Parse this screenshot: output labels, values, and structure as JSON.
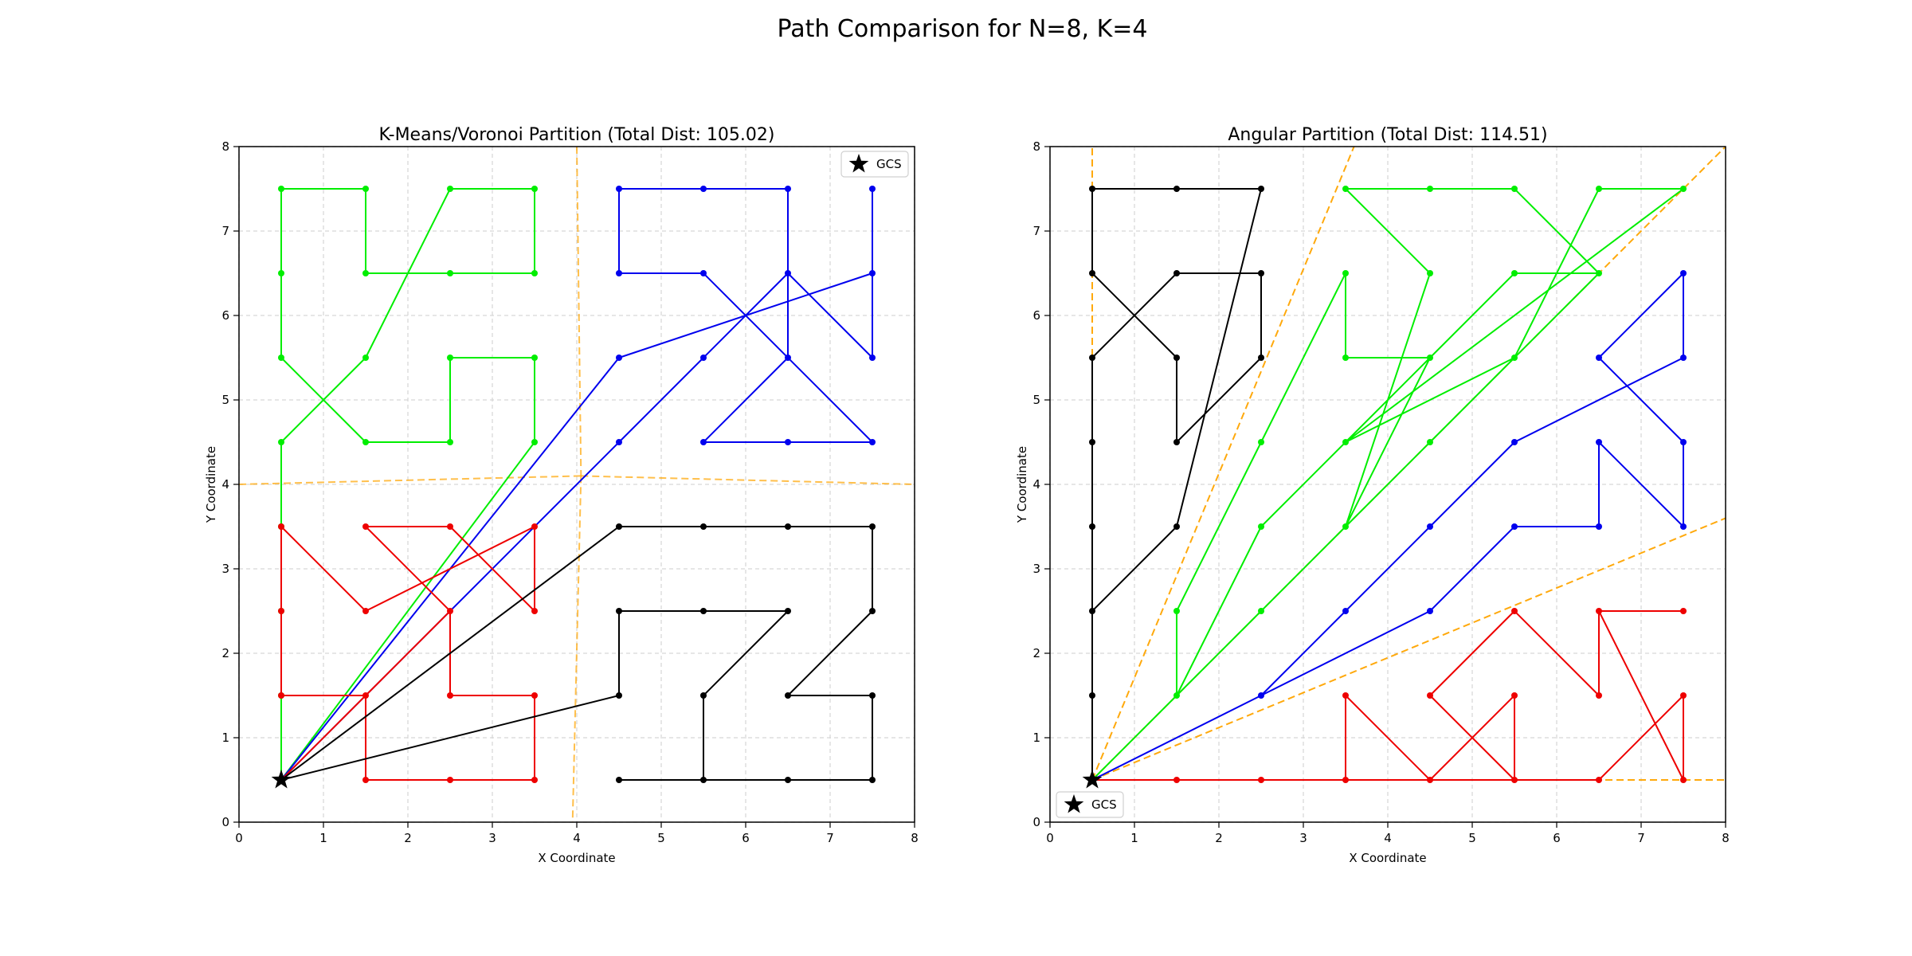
{
  "figure_title": "Path Comparison for N=8, K=4",
  "colors": {
    "green": "#00ee00",
    "blue": "#0000ee",
    "red": "#ee0000",
    "black": "#000000",
    "boundary": "#ffa500",
    "grid": "#d6d6d6"
  },
  "chart_data": [
    {
      "type": "line",
      "title": "K-Means/Voronoi Partition (Total Dist: 105.02)",
      "xlabel": "X Coordinate",
      "ylabel": "Y Coordinate",
      "xlim": [
        0,
        8
      ],
      "ylim": [
        0,
        8
      ],
      "xticks": [
        "0",
        "1",
        "2",
        "3",
        "4",
        "5",
        "6",
        "7",
        "8"
      ],
      "yticks": [
        "0",
        "1",
        "2",
        "3",
        "4",
        "5",
        "6",
        "7",
        "8"
      ],
      "grid": true,
      "legend": {
        "placement": "top-right",
        "entries": [
          {
            "label": "GCS",
            "marker": "star"
          }
        ]
      },
      "gcs": [
        0.5,
        0.5
      ],
      "boundaries": [
        [
          [
            0,
            4.0
          ],
          [
            4.05,
            4.1
          ]
        ],
        [
          [
            4.05,
            4.1
          ],
          [
            8,
            4.0
          ]
        ],
        [
          [
            4.0,
            8.0
          ],
          [
            4.05,
            4.1
          ]
        ],
        [
          [
            4.05,
            4.1
          ],
          [
            3.95,
            0
          ]
        ]
      ],
      "series": [
        {
          "color": "green",
          "points": [
            [
              0.5,
              0.5
            ],
            [
              0.5,
              1.5
            ],
            [
              0.5,
              2.5
            ],
            [
              0.5,
              3.5
            ],
            [
              0.5,
              4.5
            ],
            [
              1.5,
              5.5
            ],
            [
              2.5,
              7.5
            ],
            [
              3.5,
              7.5
            ],
            [
              3.5,
              6.5
            ],
            [
              2.5,
              6.5
            ],
            [
              1.5,
              6.5
            ],
            [
              1.5,
              7.5
            ],
            [
              0.5,
              7.5
            ],
            [
              0.5,
              6.5
            ],
            [
              0.5,
              5.5
            ],
            [
              1.5,
              4.5
            ],
            [
              2.5,
              4.5
            ],
            [
              2.5,
              5.5
            ],
            [
              3.5,
              5.5
            ],
            [
              3.5,
              4.5
            ],
            [
              0.5,
              0.5
            ]
          ]
        },
        {
          "color": "blue",
          "points": [
            [
              0.5,
              0.5
            ],
            [
              4.5,
              5.5
            ],
            [
              7.5,
              6.5
            ],
            [
              7.5,
              7.5
            ],
            [
              7.5,
              5.5
            ],
            [
              6.5,
              6.5
            ],
            [
              6.5,
              7.5
            ],
            [
              5.5,
              7.5
            ],
            [
              4.5,
              7.5
            ],
            [
              4.5,
              6.5
            ],
            [
              5.5,
              6.5
            ],
            [
              7.5,
              4.5
            ],
            [
              6.5,
              4.5
            ],
            [
              5.5,
              4.5
            ],
            [
              6.5,
              5.5
            ],
            [
              6.5,
              6.5
            ],
            [
              5.5,
              5.5
            ],
            [
              4.5,
              4.5
            ],
            [
              0.5,
              0.5
            ]
          ]
        },
        {
          "color": "red",
          "points": [
            [
              0.5,
              0.5
            ],
            [
              1.5,
              1.5
            ],
            [
              2.5,
              2.5
            ],
            [
              2.5,
              1.5
            ],
            [
              3.5,
              1.5
            ],
            [
              3.5,
              0.5
            ],
            [
              2.5,
              0.5
            ],
            [
              1.5,
              0.5
            ],
            [
              1.5,
              1.5
            ],
            [
              0.5,
              1.5
            ],
            [
              0.5,
              2.5
            ],
            [
              0.5,
              3.5
            ],
            [
              1.5,
              2.5
            ],
            [
              3.5,
              3.5
            ],
            [
              3.5,
              2.5
            ],
            [
              2.5,
              3.5
            ],
            [
              1.5,
              3.5
            ],
            [
              2.5,
              2.5
            ],
            [
              0.5,
              0.5
            ]
          ]
        },
        {
          "color": "black",
          "points": [
            [
              0.5,
              0.5
            ],
            [
              4.5,
              3.5
            ],
            [
              5.5,
              3.5
            ],
            [
              6.5,
              3.5
            ],
            [
              7.5,
              3.5
            ],
            [
              7.5,
              2.5
            ],
            [
              6.5,
              1.5
            ],
            [
              7.5,
              1.5
            ],
            [
              7.5,
              0.5
            ],
            [
              6.5,
              0.5
            ],
            [
              5.5,
              0.5
            ],
            [
              4.5,
              0.5
            ],
            [
              5.5,
              0.5
            ],
            [
              5.5,
              1.5
            ],
            [
              6.5,
              2.5
            ],
            [
              5.5,
              2.5
            ],
            [
              4.5,
              2.5
            ],
            [
              4.5,
              1.5
            ],
            [
              0.5,
              0.5
            ]
          ]
        }
      ]
    },
    {
      "type": "line",
      "title": "Angular Partition (Total Dist: 114.51)",
      "xlabel": "X Coordinate",
      "ylabel": "Y Coordinate",
      "xlim": [
        0,
        8
      ],
      "ylim": [
        0,
        8
      ],
      "xticks": [
        "0",
        "1",
        "2",
        "3",
        "4",
        "5",
        "6",
        "7",
        "8"
      ],
      "yticks": [
        "0",
        "1",
        "2",
        "3",
        "4",
        "5",
        "6",
        "7",
        "8"
      ],
      "grid": true,
      "legend": {
        "placement": "bottom-left",
        "entries": [
          {
            "label": "GCS",
            "marker": "star"
          }
        ]
      },
      "gcs": [
        0.5,
        0.5
      ],
      "boundaries": [
        [
          [
            0.5,
            0.5
          ],
          [
            0.5,
            8.0
          ]
        ],
        [
          [
            0.5,
            0.5
          ],
          [
            3.6,
            8.0
          ]
        ],
        [
          [
            0.5,
            0.5
          ],
          [
            8.0,
            8.0
          ]
        ],
        [
          [
            0.5,
            0.5
          ],
          [
            8.0,
            3.6
          ]
        ],
        [
          [
            0.5,
            0.5
          ],
          [
            8.0,
            0.5
          ]
        ]
      ],
      "series": [
        {
          "color": "black",
          "points": [
            [
              0.5,
              0.5
            ],
            [
              0.5,
              1.5
            ],
            [
              0.5,
              2.5
            ],
            [
              1.5,
              3.5
            ],
            [
              2.5,
              7.5
            ],
            [
              1.5,
              7.5
            ],
            [
              0.5,
              7.5
            ],
            [
              0.5,
              6.5
            ],
            [
              1.5,
              5.5
            ],
            [
              1.5,
              4.5
            ],
            [
              2.5,
              5.5
            ],
            [
              2.5,
              6.5
            ],
            [
              1.5,
              6.5
            ],
            [
              0.5,
              5.5
            ],
            [
              0.5,
              4.5
            ],
            [
              0.5,
              3.5
            ],
            [
              0.5,
              2.5
            ],
            [
              0.5,
              0.5
            ]
          ]
        },
        {
          "color": "green",
          "points": [
            [
              0.5,
              0.5
            ],
            [
              1.5,
              1.5
            ],
            [
              1.5,
              2.5
            ],
            [
              2.5,
              4.5
            ],
            [
              3.5,
              6.5
            ],
            [
              3.5,
              5.5
            ],
            [
              4.5,
              5.5
            ],
            [
              3.5,
              4.5
            ],
            [
              5.5,
              5.5
            ],
            [
              6.5,
              7.5
            ],
            [
              7.5,
              7.5
            ],
            [
              3.5,
              4.5
            ],
            [
              2.5,
              3.5
            ],
            [
              1.5,
              1.5
            ],
            [
              2.5,
              2.5
            ],
            [
              3.5,
              3.5
            ],
            [
              4.5,
              6.5
            ],
            [
              3.5,
              7.5
            ],
            [
              4.5,
              7.5
            ],
            [
              5.5,
              7.5
            ],
            [
              6.5,
              6.5
            ],
            [
              5.5,
              6.5
            ],
            [
              4.5,
              5.5
            ],
            [
              3.5,
              3.5
            ],
            [
              4.5,
              4.5
            ],
            [
              5.5,
              5.5
            ],
            [
              6.5,
              6.5
            ],
            [
              0.5,
              0.5
            ]
          ]
        },
        {
          "color": "blue",
          "points": [
            [
              0.5,
              0.5
            ],
            [
              2.5,
              1.5
            ],
            [
              3.5,
              2.5
            ],
            [
              4.5,
              3.5
            ],
            [
              5.5,
              4.5
            ],
            [
              7.5,
              5.5
            ],
            [
              7.5,
              6.5
            ],
            [
              6.5,
              5.5
            ],
            [
              7.5,
              4.5
            ],
            [
              7.5,
              3.5
            ],
            [
              6.5,
              4.5
            ],
            [
              6.5,
              3.5
            ],
            [
              5.5,
              3.5
            ],
            [
              4.5,
              2.5
            ],
            [
              2.5,
              1.5
            ],
            [
              0.5,
              0.5
            ]
          ]
        },
        {
          "color": "red",
          "points": [
            [
              0.5,
              0.5
            ],
            [
              1.5,
              0.5
            ],
            [
              2.5,
              0.5
            ],
            [
              3.5,
              0.5
            ],
            [
              3.5,
              1.5
            ],
            [
              4.5,
              0.5
            ],
            [
              5.5,
              1.5
            ],
            [
              5.5,
              0.5
            ],
            [
              4.5,
              1.5
            ],
            [
              5.5,
              2.5
            ],
            [
              6.5,
              1.5
            ],
            [
              6.5,
              2.5
            ],
            [
              7.5,
              2.5
            ],
            [
              6.5,
              2.5
            ],
            [
              7.5,
              0.5
            ],
            [
              7.5,
              1.5
            ],
            [
              6.5,
              0.5
            ],
            [
              5.5,
              0.5
            ],
            [
              4.5,
              0.5
            ],
            [
              3.5,
              0.5
            ],
            [
              0.5,
              0.5
            ]
          ]
        }
      ]
    }
  ]
}
